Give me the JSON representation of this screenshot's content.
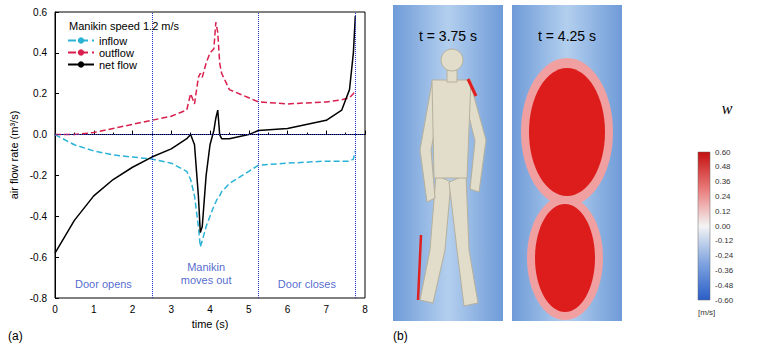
{
  "chart_data": {
    "type": "line",
    "panel_label": "(a)",
    "legend_title": "Manikin speed 1.2 m/s",
    "x_label": "time (s)",
    "y_label": "air flow rate (m³/s)",
    "x": [
      0,
      0.5,
      1,
      1.5,
      2,
      2.5,
      3,
      3.4,
      3.5,
      3.6,
      3.7,
      3.75,
      3.8,
      3.9,
      4.0,
      4.1,
      4.15,
      4.2,
      4.25,
      4.3,
      4.5,
      5,
      5.25,
      6,
      7,
      7.4,
      7.6,
      7.7,
      7.75
    ],
    "series": [
      {
        "name": "inflow",
        "color": "#2ab3d6",
        "line_style": "dashed",
        "values": [
          0.0,
          -0.05,
          -0.08,
          -0.1,
          -0.11,
          -0.12,
          -0.14,
          -0.18,
          -0.22,
          -0.3,
          -0.45,
          -0.55,
          -0.52,
          -0.45,
          -0.4,
          -0.35,
          -0.33,
          -0.31,
          -0.3,
          -0.28,
          -0.24,
          -0.18,
          -0.15,
          -0.14,
          -0.13,
          -0.13,
          -0.13,
          -0.12,
          -0.08
        ]
      },
      {
        "name": "outflow",
        "color": "#d81f4d",
        "line_style": "dashed",
        "values": [
          0.0,
          0.0,
          0.01,
          0.03,
          0.05,
          0.07,
          0.09,
          0.12,
          0.2,
          0.15,
          0.28,
          0.3,
          0.28,
          0.35,
          0.4,
          0.42,
          0.55,
          0.5,
          0.35,
          0.3,
          0.22,
          0.18,
          0.16,
          0.15,
          0.16,
          0.17,
          0.18,
          0.2,
          0.22
        ]
      },
      {
        "name": "net flow",
        "color": "#000000",
        "line_style": "solid",
        "values": [
          -0.58,
          -0.42,
          -0.3,
          -0.22,
          -0.16,
          -0.11,
          -0.07,
          -0.02,
          0.0,
          -0.05,
          -0.3,
          -0.48,
          -0.45,
          -0.2,
          -0.05,
          0.02,
          0.08,
          0.12,
          0.0,
          -0.02,
          -0.02,
          0.0,
          0.02,
          0.03,
          0.07,
          0.12,
          0.22,
          0.4,
          0.58
        ]
      }
    ],
    "xlim": [
      0,
      8
    ],
    "xticks": [
      0,
      1,
      2,
      3,
      4,
      5,
      6,
      7,
      8
    ],
    "ylim": [
      -0.8,
      0.6
    ],
    "yticks": [
      -0.8,
      -0.6,
      -0.4,
      -0.2,
      {
        "value": 0,
        "label": "0.0"
      },
      0.2,
      0.4,
      0.6
    ],
    "reference_lines": {
      "x": [
        2.5,
        5.25,
        7.75
      ],
      "y": [
        0
      ]
    },
    "annotations": [
      {
        "text": "Door opens",
        "x": 1.25,
        "y": -0.73
      },
      {
        "text": "Manikin\nmoves out",
        "x": 3.9,
        "y": -0.68
      },
      {
        "text": "Door closes",
        "x": 6.5,
        "y": -0.73
      }
    ],
    "grid": false,
    "legend": "upper left"
  },
  "panel_b": {
    "panel_label": "(b)",
    "images": [
      {
        "label": "t = 3.75 s"
      },
      {
        "label": "t = 4.25 s"
      }
    ],
    "colorbar": {
      "title": "w",
      "unit": "[m/s]",
      "range": [
        -0.6,
        0.6
      ],
      "ticks": [
        {
          "value": 0.6,
          "label": "0.60"
        },
        {
          "value": 0.48,
          "label": "0.48"
        },
        {
          "value": 0.36,
          "label": "0.36"
        },
        {
          "value": 0.24,
          "label": "0.24"
        },
        {
          "value": 0.12,
          "label": "0.12"
        },
        {
          "value": 0,
          "label": "0.00"
        },
        {
          "value": -0.12,
          "label": "-0.12"
        },
        {
          "value": -0.24,
          "label": "-0.24"
        },
        {
          "value": -0.36,
          "label": "-0.36"
        },
        {
          "value": -0.48,
          "label": "-0.48"
        },
        {
          "value": -0.6,
          "label": "-0.60"
        }
      ]
    }
  }
}
